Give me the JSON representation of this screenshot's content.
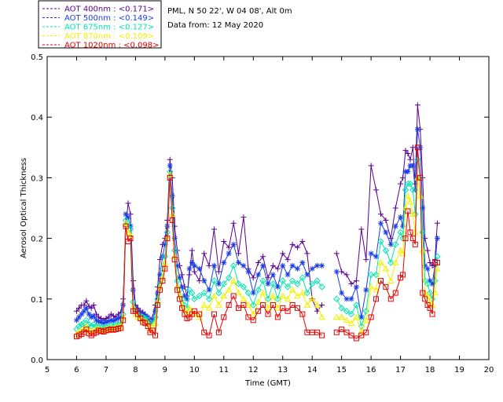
{
  "header": {
    "site": "PML, N 50 22', W 04 08', Alt 0m",
    "date": "Data from: 12 May 2020"
  },
  "legend": [
    {
      "name": "AOT  400nm : <0.171>",
      "color": "#5a0090"
    },
    {
      "name": "AOT  500nm : <0.149>",
      "color": "#1a3ee6"
    },
    {
      "name": "AOT  675nm : <0.127>",
      "color": "#00e6b0"
    },
    {
      "name": "AOT  870nm : <0.109>",
      "color": "#f2f200"
    },
    {
      "name": "AOT 1020nm : <0.098>",
      "color": "#e60000"
    }
  ],
  "chart_data": {
    "type": "line",
    "xlabel": "Time (GMT)",
    "ylabel": "Aerosol Optical Thickness",
    "xlim": [
      5,
      20
    ],
    "ylim": [
      0,
      0.5
    ],
    "xticks": [
      "5",
      "6",
      "7",
      "8",
      "9",
      "10",
      "11",
      "12",
      "13",
      "14",
      "15",
      "16",
      "17",
      "18",
      "19",
      "20"
    ],
    "yticks": [
      "0.0",
      "0.1",
      "0.2",
      "0.3",
      "0.4",
      "0.5"
    ],
    "series": [
      {
        "name": "AOT 400nm",
        "marker": "plus",
        "x": [
          6.0,
          6.08,
          6.17,
          6.25,
          6.33,
          6.42,
          6.5,
          6.58,
          6.67,
          6.75,
          6.83,
          6.92,
          7.0,
          7.08,
          7.17,
          7.25,
          7.33,
          7.42,
          7.5,
          7.58,
          7.67,
          7.75,
          7.83,
          7.92,
          8.0,
          8.08,
          8.17,
          8.25,
          8.33,
          8.42,
          8.5,
          8.58,
          8.67,
          8.75,
          8.83,
          8.92,
          9.0,
          9.08,
          9.17,
          9.25,
          9.33,
          9.42,
          9.5,
          9.58,
          9.67,
          9.75,
          9.83,
          9.92,
          10.0,
          10.17,
          10.33,
          10.5,
          10.67,
          10.83,
          11.0,
          11.17,
          11.33,
          11.5,
          11.67,
          11.83,
          12.0,
          12.17,
          12.33,
          12.5,
          12.67,
          12.83,
          13.0,
          13.17,
          13.33,
          13.5,
          13.67,
          13.83,
          14.0,
          14.17,
          14.33,
          14.83,
          15.0,
          15.17,
          15.33,
          15.5,
          15.67,
          15.83,
          16.0,
          16.17,
          16.33,
          16.5,
          16.67,
          16.83,
          17.0,
          17.08,
          17.17,
          17.25,
          17.33,
          17.42,
          17.5,
          17.58,
          17.67,
          17.75,
          17.83,
          17.92,
          18.0,
          18.08,
          18.17,
          18.25
        ],
        "y": [
          0.08,
          0.085,
          0.09,
          0.09,
          0.097,
          0.088,
          0.085,
          0.09,
          0.075,
          0.07,
          0.068,
          0.065,
          0.068,
          0.07,
          0.075,
          0.072,
          0.07,
          0.075,
          0.078,
          0.1,
          0.22,
          0.258,
          0.24,
          0.13,
          0.09,
          0.085,
          0.08,
          0.078,
          0.075,
          0.07,
          0.065,
          0.07,
          0.09,
          0.12,
          0.165,
          0.19,
          0.2,
          0.23,
          0.33,
          0.3,
          0.22,
          0.18,
          0.155,
          0.14,
          0.12,
          0.105,
          0.14,
          0.18,
          0.145,
          0.13,
          0.175,
          0.155,
          0.215,
          0.145,
          0.195,
          0.185,
          0.225,
          0.175,
          0.235,
          0.15,
          0.135,
          0.16,
          0.17,
          0.135,
          0.155,
          0.15,
          0.175,
          0.165,
          0.19,
          0.185,
          0.195,
          0.175,
          0.1,
          0.08,
          0.09,
          0.175,
          0.145,
          0.14,
          0.125,
          0.13,
          0.215,
          0.165,
          0.32,
          0.28,
          0.24,
          0.23,
          0.2,
          0.25,
          0.29,
          0.3,
          0.345,
          0.34,
          0.33,
          0.35,
          0.29,
          0.42,
          0.38,
          0.3,
          0.2,
          0.18,
          0.16,
          0.155,
          0.165,
          0.225
        ]
      },
      {
        "name": "AOT 500nm",
        "marker": "star",
        "x": [
          6.0,
          6.08,
          6.17,
          6.25,
          6.33,
          6.42,
          6.5,
          6.58,
          6.67,
          6.75,
          6.83,
          6.92,
          7.0,
          7.08,
          7.17,
          7.25,
          7.33,
          7.42,
          7.5,
          7.58,
          7.67,
          7.75,
          7.83,
          7.92,
          8.0,
          8.08,
          8.17,
          8.25,
          8.33,
          8.42,
          8.5,
          8.58,
          8.67,
          8.75,
          8.83,
          8.92,
          9.0,
          9.08,
          9.17,
          9.25,
          9.33,
          9.42,
          9.5,
          9.58,
          9.67,
          9.75,
          9.83,
          9.92,
          10.0,
          10.17,
          10.33,
          10.5,
          10.67,
          10.83,
          11.0,
          11.17,
          11.33,
          11.5,
          11.67,
          11.83,
          12.0,
          12.17,
          12.33,
          12.5,
          12.67,
          12.83,
          13.0,
          13.17,
          13.33,
          13.5,
          13.67,
          13.83,
          14.0,
          14.17,
          14.33,
          14.83,
          15.0,
          15.17,
          15.33,
          15.5,
          15.67,
          15.83,
          16.0,
          16.17,
          16.33,
          16.5,
          16.67,
          16.83,
          17.0,
          17.08,
          17.17,
          17.25,
          17.33,
          17.42,
          17.5,
          17.58,
          17.67,
          17.75,
          17.83,
          17.92,
          18.0,
          18.08,
          18.17,
          18.25
        ],
        "y": [
          0.065,
          0.07,
          0.075,
          0.08,
          0.085,
          0.075,
          0.07,
          0.072,
          0.065,
          0.063,
          0.062,
          0.06,
          0.062,
          0.063,
          0.065,
          0.064,
          0.066,
          0.068,
          0.07,
          0.09,
          0.24,
          0.235,
          0.22,
          0.115,
          0.085,
          0.08,
          0.078,
          0.075,
          0.072,
          0.07,
          0.06,
          0.065,
          0.08,
          0.11,
          0.14,
          0.17,
          0.19,
          0.22,
          0.32,
          0.27,
          0.2,
          0.155,
          0.135,
          0.12,
          0.105,
          0.1,
          0.15,
          0.16,
          0.155,
          0.15,
          0.13,
          0.115,
          0.155,
          0.125,
          0.16,
          0.175,
          0.19,
          0.16,
          0.155,
          0.145,
          0.11,
          0.14,
          0.155,
          0.125,
          0.14,
          0.12,
          0.155,
          0.14,
          0.155,
          0.15,
          0.16,
          0.14,
          0.15,
          0.155,
          0.155,
          0.145,
          0.11,
          0.1,
          0.1,
          0.12,
          0.07,
          0.115,
          0.175,
          0.17,
          0.225,
          0.21,
          0.19,
          0.22,
          0.235,
          0.22,
          0.31,
          0.31,
          0.32,
          0.32,
          0.28,
          0.38,
          0.35,
          0.25,
          0.155,
          0.15,
          0.13,
          0.125,
          0.155,
          0.2
        ]
      },
      {
        "name": "AOT 675nm",
        "marker": "diamond",
        "x": [
          6.0,
          6.08,
          6.17,
          6.25,
          6.33,
          6.42,
          6.5,
          6.58,
          6.67,
          6.75,
          6.83,
          6.92,
          7.0,
          7.08,
          7.17,
          7.25,
          7.33,
          7.42,
          7.5,
          7.58,
          7.67,
          7.75,
          7.83,
          7.92,
          8.0,
          8.08,
          8.17,
          8.25,
          8.33,
          8.42,
          8.5,
          8.58,
          8.67,
          8.75,
          8.83,
          8.92,
          9.0,
          9.08,
          9.17,
          9.25,
          9.33,
          9.42,
          9.5,
          9.58,
          9.67,
          9.75,
          9.83,
          9.92,
          10.0,
          10.17,
          10.33,
          10.5,
          10.67,
          10.83,
          11.0,
          11.17,
          11.33,
          11.5,
          11.67,
          11.83,
          12.0,
          12.17,
          12.33,
          12.5,
          12.67,
          12.83,
          13.0,
          13.17,
          13.33,
          13.5,
          13.67,
          13.83,
          14.0,
          14.17,
          14.33,
          14.83,
          15.0,
          15.17,
          15.33,
          15.5,
          15.67,
          15.83,
          16.0,
          16.17,
          16.33,
          16.5,
          16.67,
          16.83,
          17.0,
          17.08,
          17.17,
          17.25,
          17.33,
          17.42,
          17.5,
          17.58,
          17.67,
          17.75,
          17.83,
          17.92,
          18.0,
          18.08,
          18.17,
          18.25
        ],
        "y": [
          0.05,
          0.055,
          0.058,
          0.06,
          0.065,
          0.058,
          0.055,
          0.058,
          0.055,
          0.054,
          0.053,
          0.052,
          0.054,
          0.055,
          0.056,
          0.055,
          0.057,
          0.058,
          0.06,
          0.075,
          0.23,
          0.225,
          0.215,
          0.095,
          0.08,
          0.075,
          0.072,
          0.07,
          0.068,
          0.065,
          0.055,
          0.06,
          0.07,
          0.1,
          0.125,
          0.15,
          0.17,
          0.21,
          0.31,
          0.25,
          0.18,
          0.13,
          0.115,
          0.1,
          0.09,
          0.085,
          0.115,
          0.11,
          0.1,
          0.105,
          0.11,
          0.1,
          0.13,
          0.11,
          0.125,
          0.135,
          0.155,
          0.125,
          0.12,
          0.11,
          0.09,
          0.115,
          0.13,
          0.1,
          0.125,
          0.1,
          0.13,
          0.12,
          0.13,
          0.125,
          0.135,
          0.11,
          0.125,
          0.13,
          0.12,
          0.1,
          0.085,
          0.08,
          0.075,
          0.09,
          0.055,
          0.08,
          0.14,
          0.14,
          0.195,
          0.18,
          0.16,
          0.19,
          0.21,
          0.2,
          0.28,
          0.29,
          0.29,
          0.28,
          0.24,
          0.33,
          0.3,
          0.21,
          0.13,
          0.125,
          0.11,
          0.1,
          0.13,
          0.17
        ]
      },
      {
        "name": "AOT 870nm",
        "marker": "triangle",
        "x": [
          6.0,
          6.08,
          6.17,
          6.25,
          6.33,
          6.42,
          6.5,
          6.58,
          6.67,
          6.75,
          6.83,
          6.92,
          7.0,
          7.08,
          7.17,
          7.25,
          7.33,
          7.42,
          7.5,
          7.58,
          7.67,
          7.75,
          7.83,
          7.92,
          8.0,
          8.08,
          8.17,
          8.25,
          8.33,
          8.42,
          8.5,
          8.58,
          8.67,
          8.75,
          8.83,
          8.92,
          9.0,
          9.08,
          9.17,
          9.25,
          9.33,
          9.42,
          9.5,
          9.58,
          9.67,
          9.75,
          9.83,
          9.92,
          10.0,
          10.17,
          10.33,
          10.5,
          10.67,
          10.83,
          11.0,
          11.17,
          11.33,
          11.5,
          11.67,
          11.83,
          12.0,
          12.17,
          12.33,
          12.5,
          12.67,
          12.83,
          13.0,
          13.17,
          13.33,
          13.5,
          13.67,
          13.83,
          14.0,
          14.17,
          14.33,
          14.83,
          15.0,
          15.17,
          15.33,
          15.5,
          15.67,
          15.83,
          16.0,
          16.17,
          16.33,
          16.5,
          16.67,
          16.83,
          17.0,
          17.08,
          17.17,
          17.25,
          17.33,
          17.42,
          17.5,
          17.58,
          17.67,
          17.75,
          17.83,
          17.92,
          18.0,
          18.08,
          18.17,
          18.25
        ],
        "y": [
          0.042,
          0.045,
          0.048,
          0.05,
          0.055,
          0.048,
          0.046,
          0.048,
          0.05,
          0.05,
          0.049,
          0.048,
          0.05,
          0.051,
          0.052,
          0.051,
          0.053,
          0.054,
          0.055,
          0.07,
          0.225,
          0.21,
          0.205,
          0.088,
          0.075,
          0.07,
          0.068,
          0.065,
          0.062,
          0.06,
          0.048,
          0.055,
          0.06,
          0.095,
          0.12,
          0.135,
          0.16,
          0.2,
          0.305,
          0.24,
          0.17,
          0.12,
          0.105,
          0.09,
          0.082,
          0.075,
          0.085,
          0.08,
          0.075,
          0.07,
          0.09,
          0.085,
          0.105,
          0.09,
          0.105,
          0.115,
          0.13,
          0.11,
          0.1,
          0.09,
          0.075,
          0.095,
          0.11,
          0.085,
          0.105,
          0.085,
          0.105,
          0.1,
          0.115,
          0.105,
          0.11,
          0.09,
          0.1,
          0.09,
          0.07,
          0.07,
          0.07,
          0.065,
          0.06,
          0.07,
          0.045,
          0.065,
          0.12,
          0.115,
          0.16,
          0.15,
          0.13,
          0.16,
          0.18,
          0.175,
          0.25,
          0.27,
          0.26,
          0.24,
          0.21,
          0.3,
          0.27,
          0.18,
          0.11,
          0.105,
          0.095,
          0.09,
          0.11,
          0.15
        ]
      },
      {
        "name": "AOT 1020nm",
        "marker": "square",
        "x": [
          6.0,
          6.08,
          6.17,
          6.25,
          6.33,
          6.42,
          6.5,
          6.58,
          6.67,
          6.75,
          6.83,
          6.92,
          7.0,
          7.08,
          7.17,
          7.25,
          7.33,
          7.42,
          7.5,
          7.58,
          7.67,
          7.75,
          7.83,
          7.92,
          8.0,
          8.08,
          8.17,
          8.25,
          8.33,
          8.42,
          8.5,
          8.58,
          8.67,
          8.75,
          8.83,
          8.92,
          9.0,
          9.08,
          9.17,
          9.25,
          9.33,
          9.42,
          9.5,
          9.58,
          9.67,
          9.75,
          9.83,
          9.92,
          10.0,
          10.17,
          10.33,
          10.5,
          10.67,
          10.83,
          11.0,
          11.17,
          11.33,
          11.5,
          11.67,
          11.83,
          12.0,
          12.17,
          12.33,
          12.5,
          12.67,
          12.83,
          13.0,
          13.17,
          13.33,
          13.5,
          13.67,
          13.83,
          14.0,
          14.17,
          14.33,
          14.83,
          15.0,
          15.17,
          15.33,
          15.5,
          15.67,
          15.83,
          16.0,
          16.17,
          16.33,
          16.5,
          16.67,
          16.83,
          17.0,
          17.08,
          17.17,
          17.25,
          17.33,
          17.42,
          17.5,
          17.58,
          17.67,
          17.75,
          17.83,
          17.92,
          18.0,
          18.08,
          18.17,
          18.25
        ],
        "y": [
          0.038,
          0.04,
          0.042,
          0.045,
          0.05,
          0.043,
          0.04,
          0.043,
          0.045,
          0.048,
          0.047,
          0.046,
          0.048,
          0.049,
          0.05,
          0.049,
          0.05,
          0.051,
          0.052,
          0.065,
          0.22,
          0.195,
          0.2,
          0.08,
          0.08,
          0.075,
          0.068,
          0.062,
          0.06,
          0.055,
          0.045,
          0.048,
          0.04,
          0.09,
          0.115,
          0.13,
          0.15,
          0.2,
          0.3,
          0.23,
          0.165,
          0.115,
          0.1,
          0.085,
          0.075,
          0.068,
          0.07,
          0.075,
          0.08,
          0.075,
          0.045,
          0.04,
          0.075,
          0.045,
          0.07,
          0.09,
          0.105,
          0.085,
          0.09,
          0.07,
          0.065,
          0.08,
          0.09,
          0.075,
          0.09,
          0.07,
          0.085,
          0.08,
          0.09,
          0.085,
          0.075,
          0.045,
          0.045,
          0.045,
          0.04,
          0.045,
          0.05,
          0.045,
          0.04,
          0.035,
          0.04,
          0.045,
          0.07,
          0.1,
          0.13,
          0.12,
          0.1,
          0.11,
          0.135,
          0.14,
          0.2,
          0.245,
          0.21,
          0.2,
          0.19,
          0.35,
          0.3,
          0.11,
          0.1,
          0.09,
          0.085,
          0.075,
          0.16,
          0.16
        ]
      }
    ]
  }
}
